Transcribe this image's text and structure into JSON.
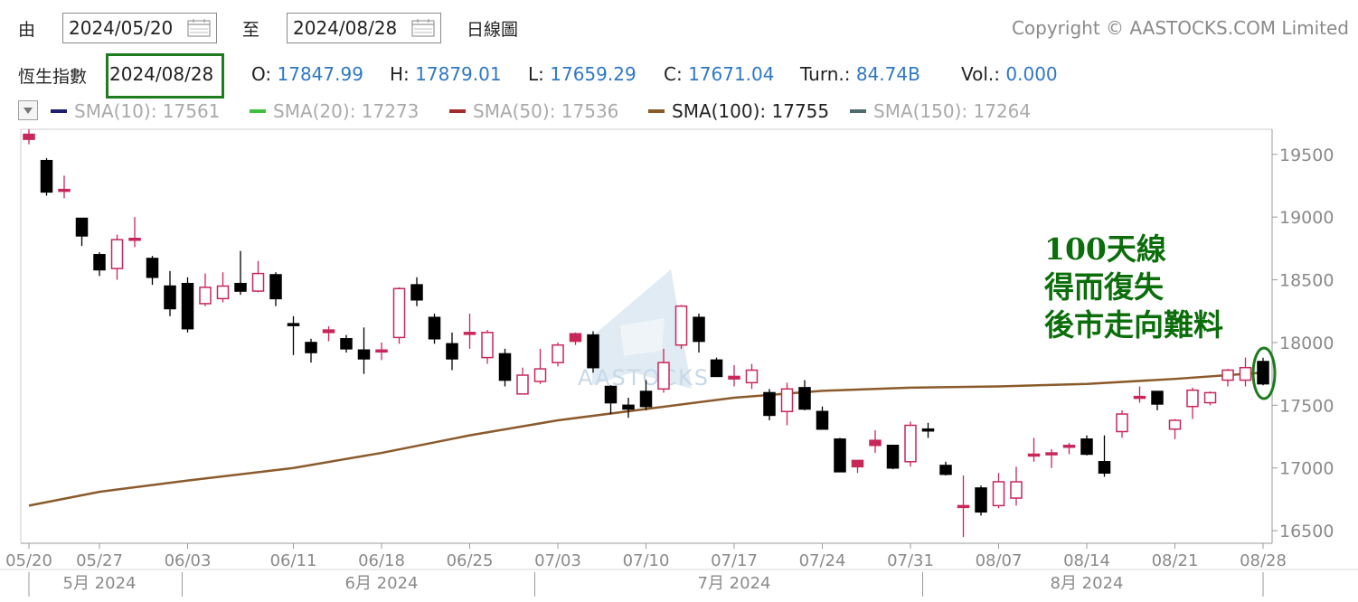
{
  "header": {
    "from_label": "由",
    "from_date": "2024/05/20",
    "to_label": "至",
    "to_date": "2024/08/28",
    "interval_label": "日線圖",
    "copyright": "Copyright © AASTOCKS.COM Limited"
  },
  "quote": {
    "index_name": "恆生指數",
    "date": "2024/08/28",
    "open_label": "O:",
    "open": "17847.99",
    "high_label": "H:",
    "high": "17879.01",
    "low_label": "L:",
    "low": "17659.29",
    "close_label": "C:",
    "close": "17671.04",
    "turnover_label": "Turn.:",
    "turnover": "84.74B",
    "volume_label": "Vol.:",
    "volume": "0.000"
  },
  "sma_legend": [
    {
      "label": "SMA(10): 17561",
      "color": "#1f1f6e",
      "active": false
    },
    {
      "label": "SMA(20): 17273",
      "color": "#3fbf3f",
      "active": false
    },
    {
      "label": "SMA(50): 17536",
      "color": "#a52a2a",
      "active": false
    },
    {
      "label": "SMA(100): 17755",
      "color": "#8b5a2b",
      "active": true
    },
    {
      "label": "SMA(150): 17264",
      "color": "#4f6b6b",
      "active": false
    }
  ],
  "annotation": {
    "line1": "100天線",
    "line2": "得而復失",
    "line3": "後市走向難料"
  },
  "watermark": "AASTOCKS",
  "colors": {
    "up": "#c8275a",
    "down": "#000000",
    "sma100": "#8b5a2b",
    "axis_text": "#8a8a8a",
    "annotation": "#0b6e0b"
  },
  "chart_data": {
    "type": "candlestick",
    "ylim": [
      16400,
      19700
    ],
    "y_ticks": [
      16500,
      17000,
      17500,
      18000,
      18500,
      19000,
      19500
    ],
    "x_tick_labels": [
      "05/20",
      "05/27",
      "06/03",
      "06/11",
      "06/18",
      "06/25",
      "07/03",
      "07/10",
      "07/17",
      "07/24",
      "07/31",
      "08/07",
      "08/14",
      "08/21",
      "08/28"
    ],
    "month_labels": [
      {
        "label": "5月 2024",
        "at": "05/27"
      },
      {
        "label": "6月 2024",
        "at": "06/18"
      },
      {
        "label": "7月 2024",
        "at": "07/17"
      },
      {
        "label": "8月 2024",
        "at": "08/14"
      }
    ],
    "candles": [
      {
        "d": "05/20",
        "o": 19620,
        "h": 19700,
        "l": 19580,
        "c": 19660
      },
      {
        "d": "05/21",
        "o": 19450,
        "h": 19470,
        "l": 19170,
        "c": 19200
      },
      {
        "d": "05/22",
        "o": 19220,
        "h": 19330,
        "l": 19150,
        "c": 19220
      },
      {
        "d": "05/24",
        "o": 18990,
        "h": 18990,
        "l": 18770,
        "c": 18850
      },
      {
        "d": "05/27",
        "o": 18700,
        "h": 18720,
        "l": 18530,
        "c": 18580
      },
      {
        "d": "05/28",
        "o": 18590,
        "h": 18860,
        "l": 18500,
        "c": 18820
      },
      {
        "d": "05/29",
        "o": 18820,
        "h": 19000,
        "l": 18760,
        "c": 18830
      },
      {
        "d": "05/30",
        "o": 18670,
        "h": 18690,
        "l": 18460,
        "c": 18520
      },
      {
        "d": "05/31",
        "o": 18450,
        "h": 18570,
        "l": 18210,
        "c": 18270
      },
      {
        "d": "06/03",
        "o": 18470,
        "h": 18520,
        "l": 18080,
        "c": 18110
      },
      {
        "d": "06/04",
        "o": 18310,
        "h": 18550,
        "l": 18290,
        "c": 18440
      },
      {
        "d": "06/05",
        "o": 18350,
        "h": 18560,
        "l": 18320,
        "c": 18450
      },
      {
        "d": "06/06",
        "o": 18470,
        "h": 18730,
        "l": 18380,
        "c": 18410
      },
      {
        "d": "06/07",
        "o": 18410,
        "h": 18650,
        "l": 18400,
        "c": 18550
      },
      {
        "d": "06/10",
        "o": 18540,
        "h": 18560,
        "l": 18290,
        "c": 18350
      },
      {
        "d": "06/11",
        "o": 18150,
        "h": 18210,
        "l": 17900,
        "c": 18140
      },
      {
        "d": "06/12",
        "o": 18000,
        "h": 18030,
        "l": 17840,
        "c": 17920
      },
      {
        "d": "06/13",
        "o": 18080,
        "h": 18130,
        "l": 18010,
        "c": 18100
      },
      {
        "d": "06/14",
        "o": 18030,
        "h": 18060,
        "l": 17920,
        "c": 17950
      },
      {
        "d": "06/17",
        "o": 17940,
        "h": 18120,
        "l": 17750,
        "c": 17870
      },
      {
        "d": "06/18",
        "o": 17930,
        "h": 18000,
        "l": 17860,
        "c": 17940
      },
      {
        "d": "06/19",
        "o": 18040,
        "h": 18440,
        "l": 17990,
        "c": 18430
      },
      {
        "d": "06/20",
        "o": 18460,
        "h": 18520,
        "l": 18290,
        "c": 18340
      },
      {
        "d": "06/21",
        "o": 18200,
        "h": 18230,
        "l": 17990,
        "c": 18030
      },
      {
        "d": "06/24",
        "o": 17990,
        "h": 18080,
        "l": 17780,
        "c": 17870
      },
      {
        "d": "06/25",
        "o": 18070,
        "h": 18230,
        "l": 17950,
        "c": 18080
      },
      {
        "d": "06/26",
        "o": 17880,
        "h": 18100,
        "l": 17830,
        "c": 18080
      },
      {
        "d": "06/27",
        "o": 17910,
        "h": 17950,
        "l": 17650,
        "c": 17700
      },
      {
        "d": "06/28",
        "o": 17590,
        "h": 17800,
        "l": 17590,
        "c": 17740
      },
      {
        "d": "07/02",
        "o": 17690,
        "h": 17950,
        "l": 17670,
        "c": 17790
      },
      {
        "d": "07/03",
        "o": 17840,
        "h": 18000,
        "l": 17810,
        "c": 17980
      },
      {
        "d": "07/04",
        "o": 18010,
        "h": 18080,
        "l": 17980,
        "c": 18070
      },
      {
        "d": "07/05",
        "o": 18060,
        "h": 18090,
        "l": 17760,
        "c": 17800
      },
      {
        "d": "07/08",
        "o": 17650,
        "h": 17660,
        "l": 17430,
        "c": 17520
      },
      {
        "d": "07/09",
        "o": 17500,
        "h": 17560,
        "l": 17400,
        "c": 17470
      },
      {
        "d": "07/10",
        "o": 17610,
        "h": 17700,
        "l": 17460,
        "c": 17490
      },
      {
        "d": "07/11",
        "o": 17630,
        "h": 17950,
        "l": 17600,
        "c": 17840
      },
      {
        "d": "07/12",
        "o": 17980,
        "h": 18300,
        "l": 17950,
        "c": 18290
      },
      {
        "d": "07/15",
        "o": 18200,
        "h": 18230,
        "l": 17920,
        "c": 18010
      },
      {
        "d": "07/16",
        "o": 17860,
        "h": 17880,
        "l": 17730,
        "c": 17730
      },
      {
        "d": "07/17",
        "o": 17710,
        "h": 17820,
        "l": 17650,
        "c": 17730
      },
      {
        "d": "07/18",
        "o": 17680,
        "h": 17830,
        "l": 17630,
        "c": 17780
      },
      {
        "d": "07/19",
        "o": 17600,
        "h": 17630,
        "l": 17380,
        "c": 17420
      },
      {
        "d": "07/22",
        "o": 17450,
        "h": 17680,
        "l": 17340,
        "c": 17630
      },
      {
        "d": "07/23",
        "o": 17640,
        "h": 17700,
        "l": 17460,
        "c": 17470
      },
      {
        "d": "07/24",
        "o": 17450,
        "h": 17490,
        "l": 17320,
        "c": 17310
      },
      {
        "d": "07/25",
        "o": 17230,
        "h": 17240,
        "l": 16970,
        "c": 16970
      },
      {
        "d": "07/26",
        "o": 17010,
        "h": 17060,
        "l": 16960,
        "c": 17060
      },
      {
        "d": "07/29",
        "o": 17180,
        "h": 17300,
        "l": 17120,
        "c": 17220
      },
      {
        "d": "07/30",
        "o": 17180,
        "h": 17180,
        "l": 16990,
        "c": 17000
      },
      {
        "d": "07/31",
        "o": 17050,
        "h": 17370,
        "l": 17010,
        "c": 17340
      },
      {
        "d": "08/01",
        "o": 17310,
        "h": 17360,
        "l": 17240,
        "c": 17300
      },
      {
        "d": "08/02",
        "o": 17020,
        "h": 17050,
        "l": 16940,
        "c": 16950
      },
      {
        "d": "08/05",
        "o": 16690,
        "h": 16940,
        "l": 16450,
        "c": 16700
      },
      {
        "d": "08/06",
        "o": 16840,
        "h": 16860,
        "l": 16620,
        "c": 16650
      },
      {
        "d": "08/07",
        "o": 16700,
        "h": 16960,
        "l": 16680,
        "c": 16890
      },
      {
        "d": "08/08",
        "o": 16760,
        "h": 17010,
        "l": 16700,
        "c": 16890
      },
      {
        "d": "08/09",
        "o": 17110,
        "h": 17240,
        "l": 17050,
        "c": 17110
      },
      {
        "d": "08/12",
        "o": 17110,
        "h": 17150,
        "l": 17000,
        "c": 17120
      },
      {
        "d": "08/13",
        "o": 17170,
        "h": 17200,
        "l": 17110,
        "c": 17180
      },
      {
        "d": "08/14",
        "o": 17230,
        "h": 17260,
        "l": 17100,
        "c": 17110
      },
      {
        "d": "08/15",
        "o": 17050,
        "h": 17260,
        "l": 16930,
        "c": 16960
      },
      {
        "d": "08/16",
        "o": 17290,
        "h": 17460,
        "l": 17240,
        "c": 17430
      },
      {
        "d": "08/19",
        "o": 17570,
        "h": 17650,
        "l": 17520,
        "c": 17570
      },
      {
        "d": "08/20",
        "o": 17610,
        "h": 17610,
        "l": 17460,
        "c": 17510
      },
      {
        "d": "08/21",
        "o": 17310,
        "h": 17390,
        "l": 17230,
        "c": 17380
      },
      {
        "d": "08/22",
        "o": 17490,
        "h": 17640,
        "l": 17390,
        "c": 17620
      },
      {
        "d": "08/23",
        "o": 17520,
        "h": 17610,
        "l": 17500,
        "c": 17600
      },
      {
        "d": "08/26",
        "o": 17700,
        "h": 17790,
        "l": 17650,
        "c": 17780
      },
      {
        "d": "08/27",
        "o": 17700,
        "h": 17880,
        "l": 17650,
        "c": 17800
      },
      {
        "d": "08/28",
        "o": 17848,
        "h": 17879,
        "l": 17659,
        "c": 17671
      }
    ],
    "sma100": [
      {
        "d": "05/20",
        "v": 16700
      },
      {
        "d": "05/27",
        "v": 16810
      },
      {
        "d": "06/03",
        "v": 16900
      },
      {
        "d": "06/11",
        "v": 17000
      },
      {
        "d": "06/18",
        "v": 17120
      },
      {
        "d": "06/25",
        "v": 17260
      },
      {
        "d": "07/03",
        "v": 17380
      },
      {
        "d": "07/10",
        "v": 17470
      },
      {
        "d": "07/17",
        "v": 17560
      },
      {
        "d": "07/24",
        "v": 17615
      },
      {
        "d": "07/31",
        "v": 17640
      },
      {
        "d": "08/07",
        "v": 17650
      },
      {
        "d": "08/14",
        "v": 17670
      },
      {
        "d": "08/21",
        "v": 17710
      },
      {
        "d": "08/28",
        "v": 17760
      }
    ]
  }
}
